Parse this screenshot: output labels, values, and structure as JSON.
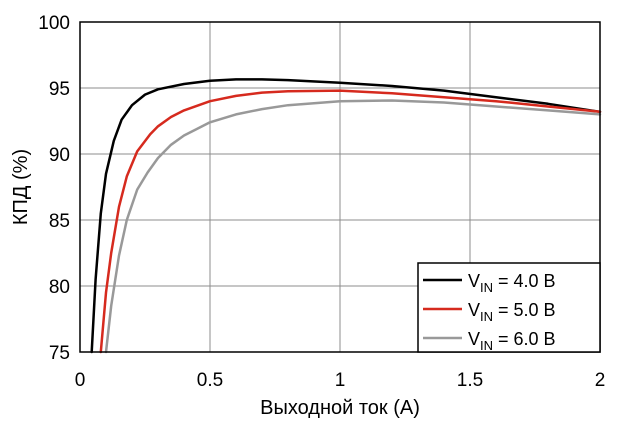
{
  "chart_data": {
    "type": "line",
    "xlabel": "Выходной ток (A)",
    "ylabel": "КПД (%)",
    "xlim": [
      0,
      2
    ],
    "ylim": [
      75,
      100
    ],
    "grid": true,
    "legend_position": "bottom-right",
    "x_ticks": [
      "0",
      "0.5",
      "1",
      "1.5",
      "2"
    ],
    "y_ticks": [
      "75",
      "80",
      "85",
      "90",
      "95",
      "100"
    ],
    "series": [
      {
        "name": "V_IN = 4.0 В",
        "label_main": "V",
        "label_sub": "IN",
        "label_rest": " = 4.0 В",
        "color": "#000000",
        "x": [
          0.045,
          0.06,
          0.08,
          0.1,
          0.13,
          0.16,
          0.2,
          0.25,
          0.3,
          0.4,
          0.5,
          0.6,
          0.7,
          0.8,
          1.0,
          1.2,
          1.4,
          1.6,
          1.8,
          2.0
        ],
        "y": [
          75.0,
          80.5,
          85.5,
          88.5,
          91.0,
          92.6,
          93.7,
          94.5,
          94.9,
          95.3,
          95.55,
          95.65,
          95.65,
          95.6,
          95.4,
          95.15,
          94.8,
          94.3,
          93.8,
          93.2
        ]
      },
      {
        "name": "V_IN = 5.0 В",
        "label_main": "V",
        "label_sub": "IN",
        "label_rest": " = 5.0 В",
        "color": "#d62a1e",
        "x": [
          0.08,
          0.1,
          0.12,
          0.15,
          0.18,
          0.22,
          0.27,
          0.3,
          0.35,
          0.4,
          0.5,
          0.6,
          0.7,
          0.8,
          1.0,
          1.2,
          1.4,
          1.6,
          1.8,
          2.0
        ],
        "y": [
          75.0,
          79.5,
          82.5,
          86.0,
          88.3,
          90.2,
          91.5,
          92.1,
          92.8,
          93.3,
          94.0,
          94.4,
          94.65,
          94.75,
          94.8,
          94.6,
          94.3,
          94.0,
          93.6,
          93.2
        ]
      },
      {
        "name": "V_IN = 6.0 В",
        "label_main": "V",
        "label_sub": "IN",
        "label_rest": " = 6.0 В",
        "color": "#999999",
        "x": [
          0.1,
          0.12,
          0.15,
          0.18,
          0.22,
          0.26,
          0.3,
          0.35,
          0.4,
          0.5,
          0.6,
          0.7,
          0.8,
          1.0,
          1.2,
          1.4,
          1.6,
          1.8,
          2.0
        ],
        "y": [
          75.0,
          78.5,
          82.3,
          85.0,
          87.3,
          88.6,
          89.7,
          90.7,
          91.4,
          92.4,
          93.0,
          93.4,
          93.7,
          94.0,
          94.05,
          93.9,
          93.6,
          93.3,
          93.0
        ]
      }
    ]
  }
}
